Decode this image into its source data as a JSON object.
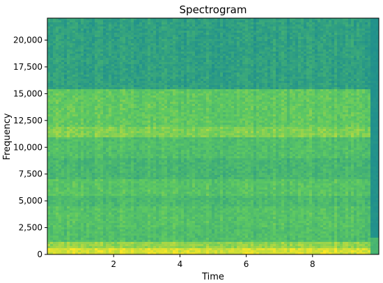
{
  "chart_data": {
    "type": "heatmap",
    "title": "Spectrogram",
    "xlabel": "Time",
    "ylabel": "Frequency",
    "xlim": [
      0,
      10
    ],
    "ylim": [
      0,
      22050
    ],
    "x_ticks": [
      2,
      4,
      6,
      8
    ],
    "x_tick_labels": [
      "2",
      "4",
      "6",
      "8"
    ],
    "y_ticks": [
      0,
      2500,
      5000,
      7500,
      10000,
      12500,
      15000,
      17500,
      20000
    ],
    "y_tick_labels": [
      "0",
      "2,500",
      "5,000",
      "7,500",
      "10,000",
      "12,500",
      "15,000",
      "17,500",
      "20,000"
    ],
    "colormap": [
      "#3b528b",
      "#21918c",
      "#5ec962",
      "#fde725"
    ],
    "signal_end_time": 9.7,
    "frequency_bands": [
      {
        "low": 0,
        "high": 500,
        "level": 0.92
      },
      {
        "low": 500,
        "high": 1200,
        "level": 0.78
      },
      {
        "low": 1200,
        "high": 2500,
        "level": 0.6
      },
      {
        "low": 2500,
        "high": 4500,
        "level": 0.62
      },
      {
        "low": 4500,
        "high": 5500,
        "level": 0.57
      },
      {
        "low": 5500,
        "high": 7000,
        "level": 0.63
      },
      {
        "low": 7000,
        "high": 9000,
        "level": 0.55
      },
      {
        "low": 9000,
        "high": 11000,
        "level": 0.6
      },
      {
        "low": 11000,
        "high": 12000,
        "level": 0.74
      },
      {
        "low": 12000,
        "high": 15500,
        "level": 0.66
      },
      {
        "low": 15500,
        "high": 22050,
        "level": 0.42
      }
    ]
  }
}
